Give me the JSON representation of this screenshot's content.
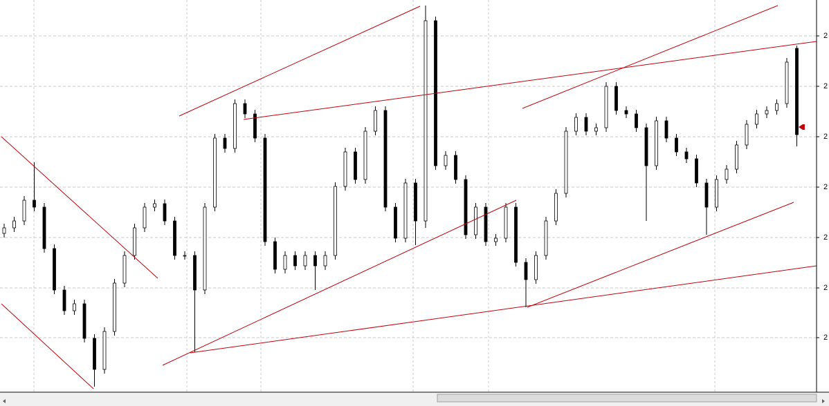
{
  "chart_data": {
    "type": "candlestick",
    "open": [
      250,
      258,
      268,
      298,
      288,
      228,
      168,
      138,
      148,
      98,
      53,
      108,
      178,
      218,
      258,
      288,
      293,
      268,
      218,
      218,
      168,
      288,
      388,
      373,
      438,
      423,
      388,
      238,
      198,
      218,
      203,
      218,
      203,
      218,
      318,
      368,
      328,
      398,
      428,
      288,
      243,
      323,
      268,
      558,
      348,
      363,
      328,
      248,
      288,
      238,
      243,
      288,
      208,
      183,
      218,
      268,
      308,
      398,
      418,
      398,
      403,
      463,
      428,
      423,
      403,
      348,
      413,
      388,
      368,
      358,
      323,
      288,
      328,
      343,
      378,
      408,
      423,
      428,
      438,
      518
    ],
    "high": [
      264,
      274,
      304,
      353,
      294,
      234,
      174,
      154,
      154,
      104,
      114,
      184,
      224,
      264,
      294,
      299,
      299,
      274,
      224,
      224,
      294,
      394,
      394,
      444,
      444,
      429,
      394,
      244,
      224,
      224,
      224,
      224,
      224,
      324,
      374,
      374,
      404,
      434,
      434,
      294,
      329,
      329,
      580,
      564,
      369,
      369,
      334,
      294,
      294,
      249,
      294,
      294,
      214,
      224,
      274,
      314,
      404,
      424,
      424,
      409,
      469,
      469,
      434,
      429,
      409,
      419,
      419,
      394,
      374,
      364,
      329,
      334,
      349,
      384,
      414,
      429,
      434,
      444,
      504,
      522
    ],
    "low": [
      244,
      252,
      262,
      282,
      222,
      162,
      132,
      132,
      92,
      28,
      47,
      102,
      172,
      212,
      252,
      282,
      262,
      212,
      212,
      78,
      162,
      282,
      367,
      367,
      417,
      382,
      232,
      192,
      192,
      197,
      197,
      168,
      197,
      212,
      312,
      322,
      322,
      392,
      282,
      237,
      237,
      233,
      258,
      342,
      342,
      322,
      242,
      242,
      232,
      232,
      237,
      202,
      143,
      177,
      212,
      262,
      302,
      392,
      392,
      392,
      397,
      422,
      417,
      397,
      268,
      342,
      382,
      362,
      352,
      317,
      248,
      282,
      322,
      337,
      372,
      402,
      417,
      422,
      432,
      376
    ],
    "close": [
      258,
      268,
      298,
      288,
      228,
      168,
      138,
      148,
      98,
      53,
      108,
      178,
      218,
      258,
      288,
      293,
      268,
      218,
      218,
      168,
      288,
      388,
      373,
      438,
      423,
      388,
      238,
      198,
      218,
      203,
      218,
      203,
      218,
      318,
      368,
      328,
      398,
      428,
      288,
      243,
      323,
      268,
      558,
      348,
      363,
      328,
      248,
      288,
      238,
      243,
      288,
      208,
      183,
      218,
      268,
      308,
      398,
      418,
      398,
      403,
      463,
      428,
      423,
      403,
      348,
      413,
      388,
      368,
      358,
      323,
      288,
      328,
      343,
      378,
      408,
      423,
      428,
      438,
      498,
      393
    ],
    "up_color": "#ffffff",
    "down_color": "#000000",
    "ylim": [
      20,
      588
    ],
    "yticks": [
      {
        "value": 99,
        "label": "2"
      },
      {
        "value": 171,
        "label": "2"
      },
      {
        "value": 244,
        "label": "2"
      },
      {
        "value": 317,
        "label": "2"
      },
      {
        "value": 390,
        "label": "2"
      },
      {
        "value": 463,
        "label": "2"
      },
      {
        "value": 536,
        "label": "2"
      }
    ],
    "grid": true
  }
}
